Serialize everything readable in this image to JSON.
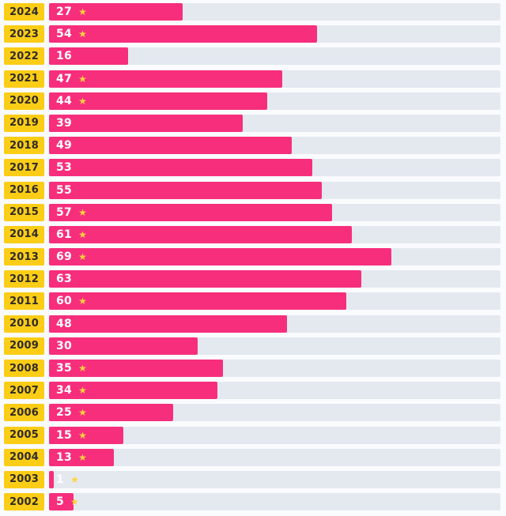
{
  "chart_data": {
    "type": "bar",
    "orientation": "horizontal",
    "title": "",
    "xlabel": "",
    "ylabel": "",
    "xlim": [
      0,
      91
    ],
    "grid": false,
    "legend": false,
    "categories": [
      "2024",
      "2023",
      "2022",
      "2021",
      "2020",
      "2019",
      "2018",
      "2017",
      "2016",
      "2015",
      "2014",
      "2013",
      "2012",
      "2011",
      "2010",
      "2009",
      "2008",
      "2007",
      "2006",
      "2005",
      "2004",
      "2003",
      "2002"
    ],
    "values": [
      27,
      54,
      16,
      47,
      44,
      39,
      49,
      53,
      55,
      57,
      61,
      69,
      63,
      60,
      48,
      30,
      35,
      34,
      25,
      15,
      13,
      1,
      5
    ],
    "starred": [
      true,
      true,
      false,
      true,
      true,
      false,
      false,
      false,
      false,
      true,
      true,
      true,
      false,
      true,
      false,
      false,
      true,
      true,
      true,
      true,
      true,
      true,
      true
    ]
  },
  "icons": {
    "star": "★"
  },
  "colors": {
    "bar": "#f72e7c",
    "label_bg": "#fbcd16",
    "track": "#e4e9f0",
    "star": "#ffd43b",
    "label_text": "#2f2a2a",
    "value_text": "#ffffff",
    "background": "#fafbfd"
  }
}
